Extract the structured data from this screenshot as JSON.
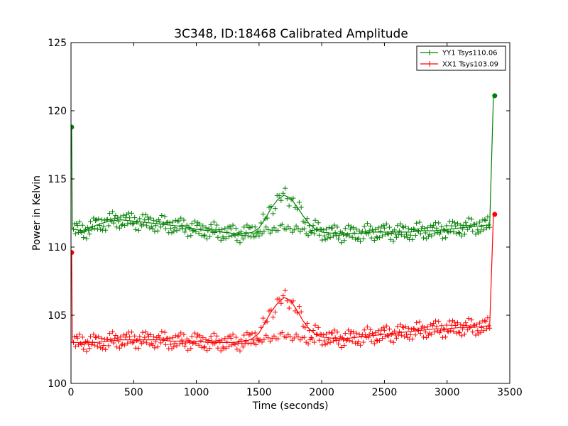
{
  "chart_data": {
    "type": "line",
    "title": "3C348, ID:18468 Calibrated Amplitude",
    "xlabel": "Time (seconds)",
    "ylabel": "Power in Kelvin",
    "xlim": [
      0,
      3500
    ],
    "ylim": [
      100,
      125
    ],
    "xticks": [
      0,
      500,
      1000,
      1500,
      2000,
      2500,
      3000,
      3500
    ],
    "yticks": [
      100,
      105,
      110,
      115,
      120,
      125
    ],
    "grid": false,
    "legend_position": "top-right",
    "series": [
      {
        "name": "YY1 Tsys110.06",
        "color": "#008000",
        "x": [
          5,
          10,
          20,
          100,
          200,
          300,
          400,
          500,
          600,
          700,
          800,
          900,
          1000,
          1100,
          1200,
          1300,
          1400,
          1450,
          1500,
          1550,
          1600,
          1650,
          1700,
          1750,
          1800,
          1850,
          1900,
          1950,
          2000,
          2100,
          2200,
          2300,
          2400,
          2500,
          2600,
          2700,
          2800,
          2900,
          3000,
          3100,
          3200,
          3300,
          3340,
          3370,
          3380
        ],
        "y": [
          118.8,
          111.4,
          111.3,
          111.2,
          111.6,
          111.9,
          112.0,
          111.9,
          111.8,
          111.7,
          111.6,
          111.5,
          111.3,
          111.2,
          111.1,
          111.0,
          111.0,
          111.1,
          111.4,
          112.1,
          112.9,
          113.5,
          113.8,
          113.6,
          113.0,
          112.3,
          111.7,
          111.3,
          111.1,
          111.0,
          111.0,
          111.0,
          111.1,
          111.1,
          111.1,
          111.1,
          111.2,
          111.2,
          111.3,
          111.4,
          111.5,
          111.6,
          111.6,
          121.1,
          121.1
        ],
        "spread": 0.9
      },
      {
        "name": "XX1 Tsys103.09",
        "color": "#ff0000",
        "x": [
          5,
          10,
          20,
          100,
          200,
          300,
          400,
          500,
          600,
          700,
          800,
          900,
          1000,
          1100,
          1200,
          1300,
          1400,
          1450,
          1500,
          1550,
          1600,
          1650,
          1700,
          1750,
          1800,
          1850,
          1900,
          1950,
          2000,
          2100,
          2200,
          2300,
          2400,
          2500,
          2600,
          2700,
          2800,
          2900,
          3000,
          3100,
          3200,
          3300,
          3340,
          3370,
          3380
        ],
        "y": [
          109.6,
          103.0,
          103.0,
          103.0,
          103.0,
          103.1,
          103.2,
          103.2,
          103.2,
          103.2,
          103.1,
          103.1,
          103.1,
          103.0,
          103.0,
          103.0,
          103.1,
          103.3,
          103.7,
          104.5,
          105.3,
          105.9,
          106.3,
          106.1,
          105.4,
          104.6,
          104.0,
          103.6,
          103.4,
          103.3,
          103.3,
          103.4,
          103.5,
          103.6,
          103.7,
          103.8,
          103.9,
          104.0,
          104.0,
          104.1,
          104.1,
          104.2,
          104.2,
          112.4,
          112.4
        ],
        "spread": 0.9
      }
    ]
  }
}
